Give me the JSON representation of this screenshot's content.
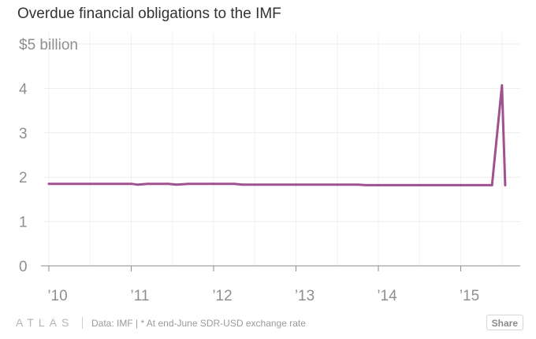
{
  "chart_data": {
    "type": "line",
    "title": "Overdue financial obligations to the IMF",
    "ylabel": "$5 billion",
    "xlabel": "",
    "ylim": [
      0,
      5
    ],
    "xlim": [
      2010,
      2015.75
    ],
    "y_ticks": [
      {
        "value": 0,
        "label": "0"
      },
      {
        "value": 1,
        "label": "1"
      },
      {
        "value": 2,
        "label": "2"
      },
      {
        "value": 3,
        "label": "3"
      },
      {
        "value": 4,
        "label": "4"
      },
      {
        "value": 5,
        "label": "$5 billion"
      }
    ],
    "x_ticks": [
      {
        "value": 2010,
        "label": "’10"
      },
      {
        "value": 2011,
        "label": "’11"
      },
      {
        "value": 2012,
        "label": "’12"
      },
      {
        "value": 2013,
        "label": "’13"
      },
      {
        "value": 2014,
        "label": "’14"
      },
      {
        "value": 2015,
        "label": "’15"
      }
    ],
    "grid": true,
    "series": [
      {
        "name": "Overdue obligations",
        "color": "#a0528e",
        "x": [
          2010.0,
          2011.0,
          2011.08,
          2011.2,
          2011.45,
          2011.55,
          2011.7,
          2012.0,
          2012.25,
          2012.35,
          2013.0,
          2013.5,
          2013.75,
          2013.85,
          2014.0,
          2015.0,
          2015.38,
          2015.5,
          2015.54
        ],
        "values": [
          1.85,
          1.85,
          1.83,
          1.85,
          1.85,
          1.83,
          1.85,
          1.85,
          1.85,
          1.83,
          1.83,
          1.83,
          1.83,
          1.82,
          1.82,
          1.82,
          1.82,
          4.07,
          1.82
        ]
      }
    ]
  },
  "footer": {
    "brand": "ATLAS",
    "source": "Data: IMF | * At end-June SDR-USD exchange rate",
    "share_label": "Share"
  }
}
